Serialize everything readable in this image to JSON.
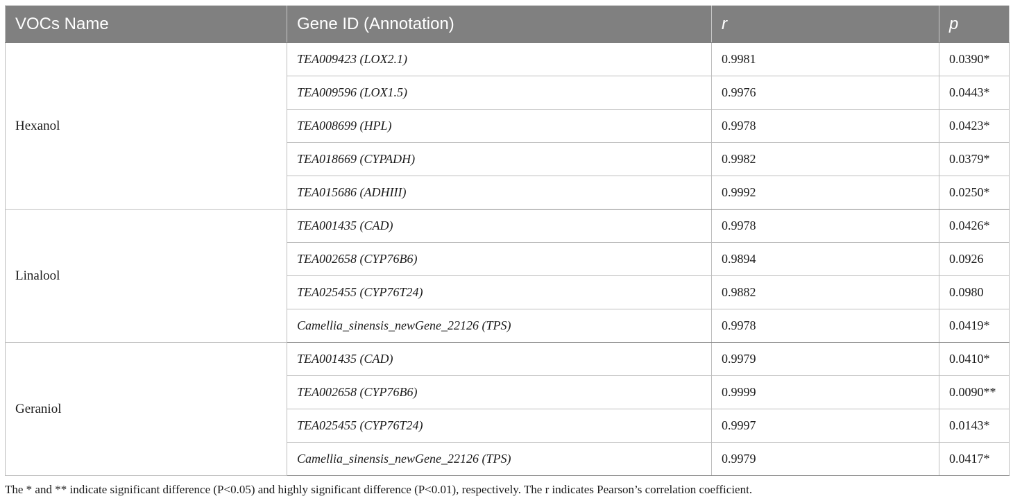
{
  "table": {
    "headers": [
      "VOCs Name",
      "Gene ID (Annotation)",
      "r",
      "p"
    ],
    "groups": [
      {
        "voc": "Hexanol",
        "rows": [
          {
            "gene": "TEA009423 (LOX2.1)",
            "r": "0.9981",
            "p": "0.0390*"
          },
          {
            "gene": "TEA009596 (LOX1.5)",
            "r": "0.9976",
            "p": "0.0443*"
          },
          {
            "gene": "TEA008699 (HPL)",
            "r": "0.9978",
            "p": "0.0423*"
          },
          {
            "gene": "TEA018669 (CYPADH)",
            "r": "0.9982",
            "p": "0.0379*"
          },
          {
            "gene": "TEA015686 (ADHIII)",
            "r": "0.9992",
            "p": "0.0250*"
          }
        ]
      },
      {
        "voc": "Linalool",
        "rows": [
          {
            "gene": "TEA001435 (CAD)",
            "r": "0.9978",
            "p": "0.0426*"
          },
          {
            "gene": "TEA002658 (CYP76B6)",
            "r": "0.9894",
            "p": "0.0926"
          },
          {
            "gene": "TEA025455 (CYP76T24)",
            "r": "0.9882",
            "p": "0.0980"
          },
          {
            "gene": "Camellia_sinensis_newGene_22126 (TPS)",
            "r": "0.9978",
            "p": "0.0419*"
          }
        ]
      },
      {
        "voc": "Geraniol",
        "rows": [
          {
            "gene": "TEA001435 (CAD)",
            "r": "0.9979",
            "p": "0.0410*"
          },
          {
            "gene": "TEA002658 (CYP76B6)",
            "r": "0.9999",
            "p": "0.0090**"
          },
          {
            "gene": "TEA025455 (CYP76T24)",
            "r": "0.9997",
            "p": "0.0143*"
          },
          {
            "gene": "Camellia_sinensis_newGene_22126 (TPS)",
            "r": "0.9979",
            "p": "0.0417*"
          }
        ]
      }
    ]
  },
  "footnote": "The * and ** indicate significant difference (P<0.05) and highly significant difference (P<0.01), respectively. The r indicates Pearson’s correlation coefficient."
}
